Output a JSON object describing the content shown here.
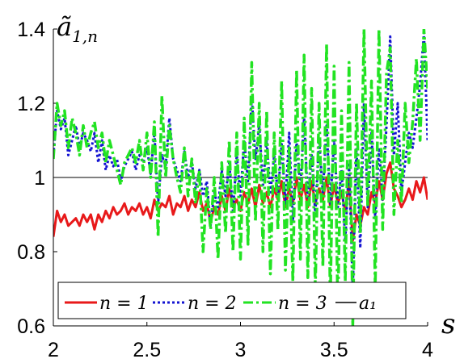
{
  "chart_data": {
    "type": "line",
    "xlabel": "s",
    "ylabel": "ã",
    "ylabel_sub": "1,n",
    "xlim": [
      2,
      4
    ],
    "ylim": [
      0.6,
      1.4
    ],
    "xticks": [
      2,
      2.5,
      3,
      3.5,
      4
    ],
    "xtick_labels": [
      "2",
      "2.5",
      "3",
      "3.5",
      "4"
    ],
    "yticks": [
      0.6,
      0.8,
      1,
      1.2,
      1.4
    ],
    "ytick_labels": [
      "0.6",
      "0.8",
      "1",
      "1.2",
      "1.4"
    ],
    "grid": false,
    "legend_position": "bottom",
    "series": [
      {
        "name": "n = 1",
        "color": "#e8191a",
        "dash": "solid",
        "x": [
          2.0,
          2.02,
          2.04,
          2.06,
          2.08,
          2.1,
          2.12,
          2.14,
          2.16,
          2.18,
          2.2,
          2.22,
          2.24,
          2.26,
          2.28,
          2.3,
          2.32,
          2.34,
          2.36,
          2.38,
          2.4,
          2.42,
          2.44,
          2.46,
          2.48,
          2.5,
          2.52,
          2.54,
          2.56,
          2.58,
          2.6,
          2.62,
          2.64,
          2.66,
          2.68,
          2.7,
          2.72,
          2.74,
          2.76,
          2.78,
          2.8,
          2.82,
          2.84,
          2.86,
          2.88,
          2.9,
          2.92,
          2.94,
          2.96,
          2.98,
          3.0,
          3.02,
          3.04,
          3.06,
          3.08,
          3.1,
          3.12,
          3.14,
          3.16,
          3.18,
          3.2,
          3.22,
          3.24,
          3.26,
          3.28,
          3.3,
          3.32,
          3.34,
          3.36,
          3.38,
          3.4,
          3.42,
          3.44,
          3.46,
          3.48,
          3.5,
          3.52,
          3.54,
          3.56,
          3.58,
          3.6,
          3.62,
          3.64,
          3.66,
          3.68,
          3.7,
          3.72,
          3.74,
          3.76,
          3.78,
          3.8,
          3.82,
          3.84,
          3.86,
          3.88,
          3.9,
          3.92,
          3.94,
          3.96,
          3.98,
          4.0
        ],
        "y": [
          0.84,
          0.91,
          0.88,
          0.9,
          0.87,
          0.88,
          0.89,
          0.87,
          0.9,
          0.88,
          0.9,
          0.86,
          0.9,
          0.88,
          0.91,
          0.89,
          0.92,
          0.9,
          0.91,
          0.93,
          0.9,
          0.92,
          0.91,
          0.93,
          0.9,
          0.92,
          0.89,
          0.94,
          0.91,
          0.93,
          0.92,
          0.95,
          0.9,
          0.93,
          0.92,
          0.95,
          0.91,
          0.94,
          0.92,
          0.96,
          0.91,
          0.93,
          0.88,
          0.92,
          0.9,
          0.95,
          0.91,
          0.97,
          0.92,
          0.94,
          0.91,
          0.96,
          0.93,
          0.97,
          0.92,
          0.98,
          0.93,
          0.96,
          0.92,
          0.97,
          0.94,
          0.99,
          0.92,
          0.97,
          0.93,
          1.0,
          0.94,
          0.98,
          0.92,
          0.99,
          0.93,
          0.97,
          0.94,
          1.0,
          0.92,
          0.98,
          0.93,
          0.96,
          0.91,
          0.99,
          0.83,
          0.9,
          0.87,
          0.92,
          0.9,
          0.96,
          0.93,
          0.99,
          0.94,
          1.01,
          1.04,
          0.97,
          0.95,
          0.92,
          0.94,
          0.97,
          0.94,
          0.99,
          0.96,
          1.0,
          0.94
        ]
      },
      {
        "name": "n = 2",
        "color": "#1414d2",
        "dash": "dotted",
        "x": [
          2.0,
          2.02,
          2.04,
          2.06,
          2.08,
          2.1,
          2.12,
          2.14,
          2.16,
          2.18,
          2.2,
          2.22,
          2.24,
          2.26,
          2.28,
          2.3,
          2.32,
          2.34,
          2.36,
          2.38,
          2.4,
          2.42,
          2.44,
          2.46,
          2.48,
          2.5,
          2.52,
          2.54,
          2.56,
          2.58,
          2.6,
          2.62,
          2.64,
          2.66,
          2.68,
          2.7,
          2.72,
          2.74,
          2.76,
          2.78,
          2.8,
          2.82,
          2.84,
          2.86,
          2.88,
          2.9,
          2.92,
          2.94,
          2.96,
          2.98,
          3.0,
          3.02,
          3.04,
          3.06,
          3.08,
          3.1,
          3.12,
          3.14,
          3.16,
          3.18,
          3.2,
          3.22,
          3.24,
          3.26,
          3.28,
          3.3,
          3.32,
          3.34,
          3.36,
          3.38,
          3.4,
          3.42,
          3.44,
          3.46,
          3.48,
          3.5,
          3.52,
          3.54,
          3.56,
          3.58,
          3.6,
          3.62,
          3.64,
          3.66,
          3.68,
          3.7,
          3.72,
          3.74,
          3.76,
          3.78,
          3.8,
          3.82,
          3.84,
          3.86,
          3.88,
          3.9,
          3.92,
          3.94,
          3.96,
          3.98,
          4.0
        ],
        "y": [
          1.06,
          1.18,
          1.13,
          1.16,
          1.06,
          1.1,
          1.14,
          1.08,
          1.12,
          1.1,
          1.07,
          1.12,
          1.04,
          1.1,
          1.02,
          1.06,
          1.03,
          1.05,
          0.99,
          1.03,
          1.05,
          1.07,
          1.02,
          1.06,
          1.04,
          1.08,
          1.01,
          1.12,
          0.93,
          1.06,
          1.03,
          1.16,
          1.05,
          1.02,
          0.99,
          1.07,
          1.0,
          1.04,
          0.97,
          1.02,
          0.95,
          0.99,
          0.87,
          0.96,
          0.92,
          1.02,
          0.95,
          1.04,
          0.91,
          1.06,
          0.95,
          1.1,
          0.99,
          1.22,
          1.05,
          1.14,
          0.98,
          1.1,
          0.96,
          1.06,
          0.95,
          1.09,
          0.93,
          1.12,
          0.88,
          1.1,
          0.97,
          1.16,
          0.94,
          1.06,
          0.9,
          1.1,
          0.96,
          1.14,
          0.93,
          1.1,
          0.92,
          1.02,
          0.83,
          1.04,
          0.7,
          1.08,
          0.81,
          1.2,
          0.92,
          1.12,
          0.89,
          1.08,
          0.94,
          1.14,
          1.38,
          1.06,
          1.2,
          0.96,
          1.04,
          1.12,
          1.08,
          1.16,
          1.25,
          1.39,
          1.1
        ]
      },
      {
        "name": "n = 3",
        "color": "#22e322",
        "dash": "dashdot",
        "x": [
          2.0,
          2.02,
          2.04,
          2.06,
          2.08,
          2.1,
          2.12,
          2.14,
          2.16,
          2.18,
          2.2,
          2.22,
          2.24,
          2.26,
          2.28,
          2.3,
          2.32,
          2.34,
          2.36,
          2.38,
          2.4,
          2.42,
          2.44,
          2.46,
          2.48,
          2.5,
          2.52,
          2.54,
          2.56,
          2.58,
          2.6,
          2.62,
          2.64,
          2.66,
          2.68,
          2.7,
          2.72,
          2.74,
          2.76,
          2.78,
          2.8,
          2.82,
          2.84,
          2.86,
          2.88,
          2.9,
          2.92,
          2.94,
          2.96,
          2.98,
          3.0,
          3.02,
          3.04,
          3.06,
          3.08,
          3.1,
          3.12,
          3.14,
          3.16,
          3.18,
          3.2,
          3.22,
          3.24,
          3.26,
          3.28,
          3.3,
          3.32,
          3.34,
          3.36,
          3.38,
          3.4,
          3.42,
          3.44,
          3.46,
          3.48,
          3.5,
          3.52,
          3.54,
          3.56,
          3.58,
          3.6,
          3.62,
          3.64,
          3.66,
          3.68,
          3.7,
          3.72,
          3.74,
          3.76,
          3.78,
          3.8,
          3.82,
          3.84,
          3.86,
          3.88,
          3.9,
          3.92,
          3.94,
          3.96,
          3.98,
          4.0
        ],
        "y": [
          1.05,
          1.2,
          1.14,
          1.18,
          1.08,
          1.16,
          1.12,
          1.06,
          1.14,
          1.08,
          1.12,
          1.15,
          1.08,
          1.12,
          1.04,
          1.1,
          1.06,
          1.02,
          0.98,
          1.04,
          1.06,
          1.08,
          1.04,
          1.1,
          1.02,
          1.12,
          1.0,
          1.15,
          0.84,
          1.22,
          1.0,
          1.14,
          1.05,
          1.0,
          0.96,
          1.08,
          0.95,
          1.05,
          0.93,
          1.02,
          0.8,
          0.97,
          0.86,
          1.0,
          0.78,
          1.04,
          0.85,
          1.1,
          0.8,
          1.12,
          0.78,
          1.16,
          0.82,
          1.31,
          0.88,
          1.2,
          0.8,
          1.18,
          0.74,
          1.12,
          0.86,
          1.26,
          0.75,
          1.08,
          0.72,
          1.29,
          0.78,
          1.33,
          0.73,
          1.24,
          0.7,
          1.2,
          0.76,
          1.36,
          0.66,
          1.3,
          0.64,
          1.18,
          0.72,
          1.31,
          0.6,
          1.2,
          0.85,
          1.4,
          0.92,
          1.26,
          0.7,
          1.4,
          0.86,
          1.28,
          1.35,
          0.9,
          1.1,
          0.93,
          1.2,
          1.04,
          1.15,
          1.32,
          1.1,
          1.4,
          1.24
        ]
      },
      {
        "name": "a1",
        "color": "#000000",
        "dash": "solid",
        "x": [
          2.0,
          4.0
        ],
        "y": [
          1.0,
          1.0
        ]
      }
    ]
  },
  "legend": {
    "items": [
      {
        "label": "n = 1",
        "color": "#e8191a",
        "dash": "solid"
      },
      {
        "label": "n = 2",
        "color": "#1414d2",
        "dash": "dotted"
      },
      {
        "label": "n = 3",
        "color": "#22e322",
        "dash": "dashdot"
      },
      {
        "label": "a₁",
        "color": "#000000",
        "dash": "solid"
      }
    ]
  }
}
